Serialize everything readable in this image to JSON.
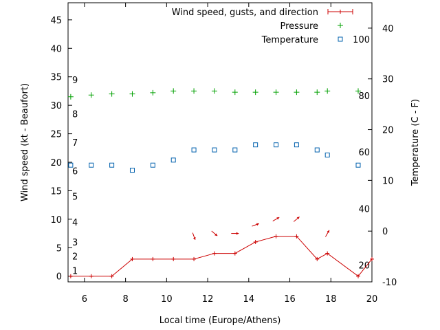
{
  "chart_data": {
    "type": "line",
    "xlabel": "Local time (Europe/Athens)",
    "ylabel": "Wind speed (kt - Beaufort)",
    "y2label": "Temperature (C - F)",
    "xlim": [
      5.2,
      20
    ],
    "ylim": [
      -1,
      48
    ],
    "y2lim": [
      -10,
      45
    ],
    "x_ticks": [
      6,
      8,
      10,
      12,
      14,
      16,
      18,
      20
    ],
    "y_ticks": [
      0,
      5,
      10,
      15,
      20,
      25,
      30,
      35,
      40,
      45
    ],
    "y2_ticks": [
      -10,
      0,
      10,
      20,
      30,
      40
    ],
    "beaufort_labels": [
      {
        "label": "1",
        "kt": 1
      },
      {
        "label": "2",
        "kt": 3.5
      },
      {
        "label": "3",
        "kt": 6
      },
      {
        "label": "4",
        "kt": 9.5
      },
      {
        "label": "5",
        "kt": 14
      },
      {
        "label": "6",
        "kt": 18.5
      },
      {
        "label": "7",
        "kt": 23.5
      },
      {
        "label": "8",
        "kt": 28.5
      },
      {
        "label": "9",
        "kt": 34.5
      }
    ],
    "fahrenheit_labels": [
      {
        "label": "20",
        "c": -6.7
      },
      {
        "label": "40",
        "c": 4.4
      },
      {
        "label": "60",
        "c": 15.6
      },
      {
        "label": "80",
        "c": 26.7
      },
      {
        "label": "100",
        "c": 37.8
      }
    ],
    "legend": {
      "position": "top-right",
      "entries": [
        "Wind speed, gusts, and direction",
        "Pressure",
        "Temperature"
      ]
    },
    "series": [
      {
        "name": "Wind speed, gusts, and direction",
        "color": "#cc0000",
        "x": [
          5.33,
          6.33,
          7.33,
          8.33,
          9.33,
          10.33,
          11.33,
          12.33,
          13.33,
          14.33,
          15.33,
          16.33,
          17.33,
          17.83,
          19.33,
          20
        ],
        "values": [
          0,
          0,
          0,
          3,
          3,
          3,
          3,
          4,
          4,
          6,
          7,
          7,
          3,
          4,
          0,
          3
        ]
      },
      {
        "name": "Pressure",
        "color": "#00a000",
        "x": [
          5.33,
          6.33,
          7.33,
          8.33,
          9.33,
          10.33,
          11.33,
          12.33,
          13.33,
          14.33,
          15.33,
          16.33,
          17.33,
          17.83,
          19.33
        ],
        "values": [
          31.5,
          31.8,
          32,
          32,
          32.2,
          32.5,
          32.5,
          32.5,
          32.3,
          32.3,
          32.3,
          32.3,
          32.3,
          32.5,
          32.5
        ]
      },
      {
        "name": "Temperature",
        "color": "#0060ad",
        "axis": "y2",
        "x": [
          5.33,
          6.33,
          7.33,
          8.33,
          9.33,
          10.33,
          11.33,
          12.33,
          13.33,
          14.33,
          15.33,
          16.33,
          17.33,
          17.83,
          19.33
        ],
        "values": [
          13,
          13,
          13,
          12,
          13,
          14,
          16,
          16,
          16,
          17,
          17,
          17,
          16,
          15,
          13
        ]
      }
    ],
    "wind_direction": {
      "color": "#cc0000",
      "x": [
        11.33,
        12.33,
        13.33,
        14.33,
        15.33,
        16.33,
        17.83
      ],
      "kt": [
        7,
        7.5,
        7.5,
        9,
        10,
        10,
        7.5
      ],
      "toward_deg": [
        160,
        130,
        90,
        70,
        60,
        50,
        30
      ]
    }
  }
}
